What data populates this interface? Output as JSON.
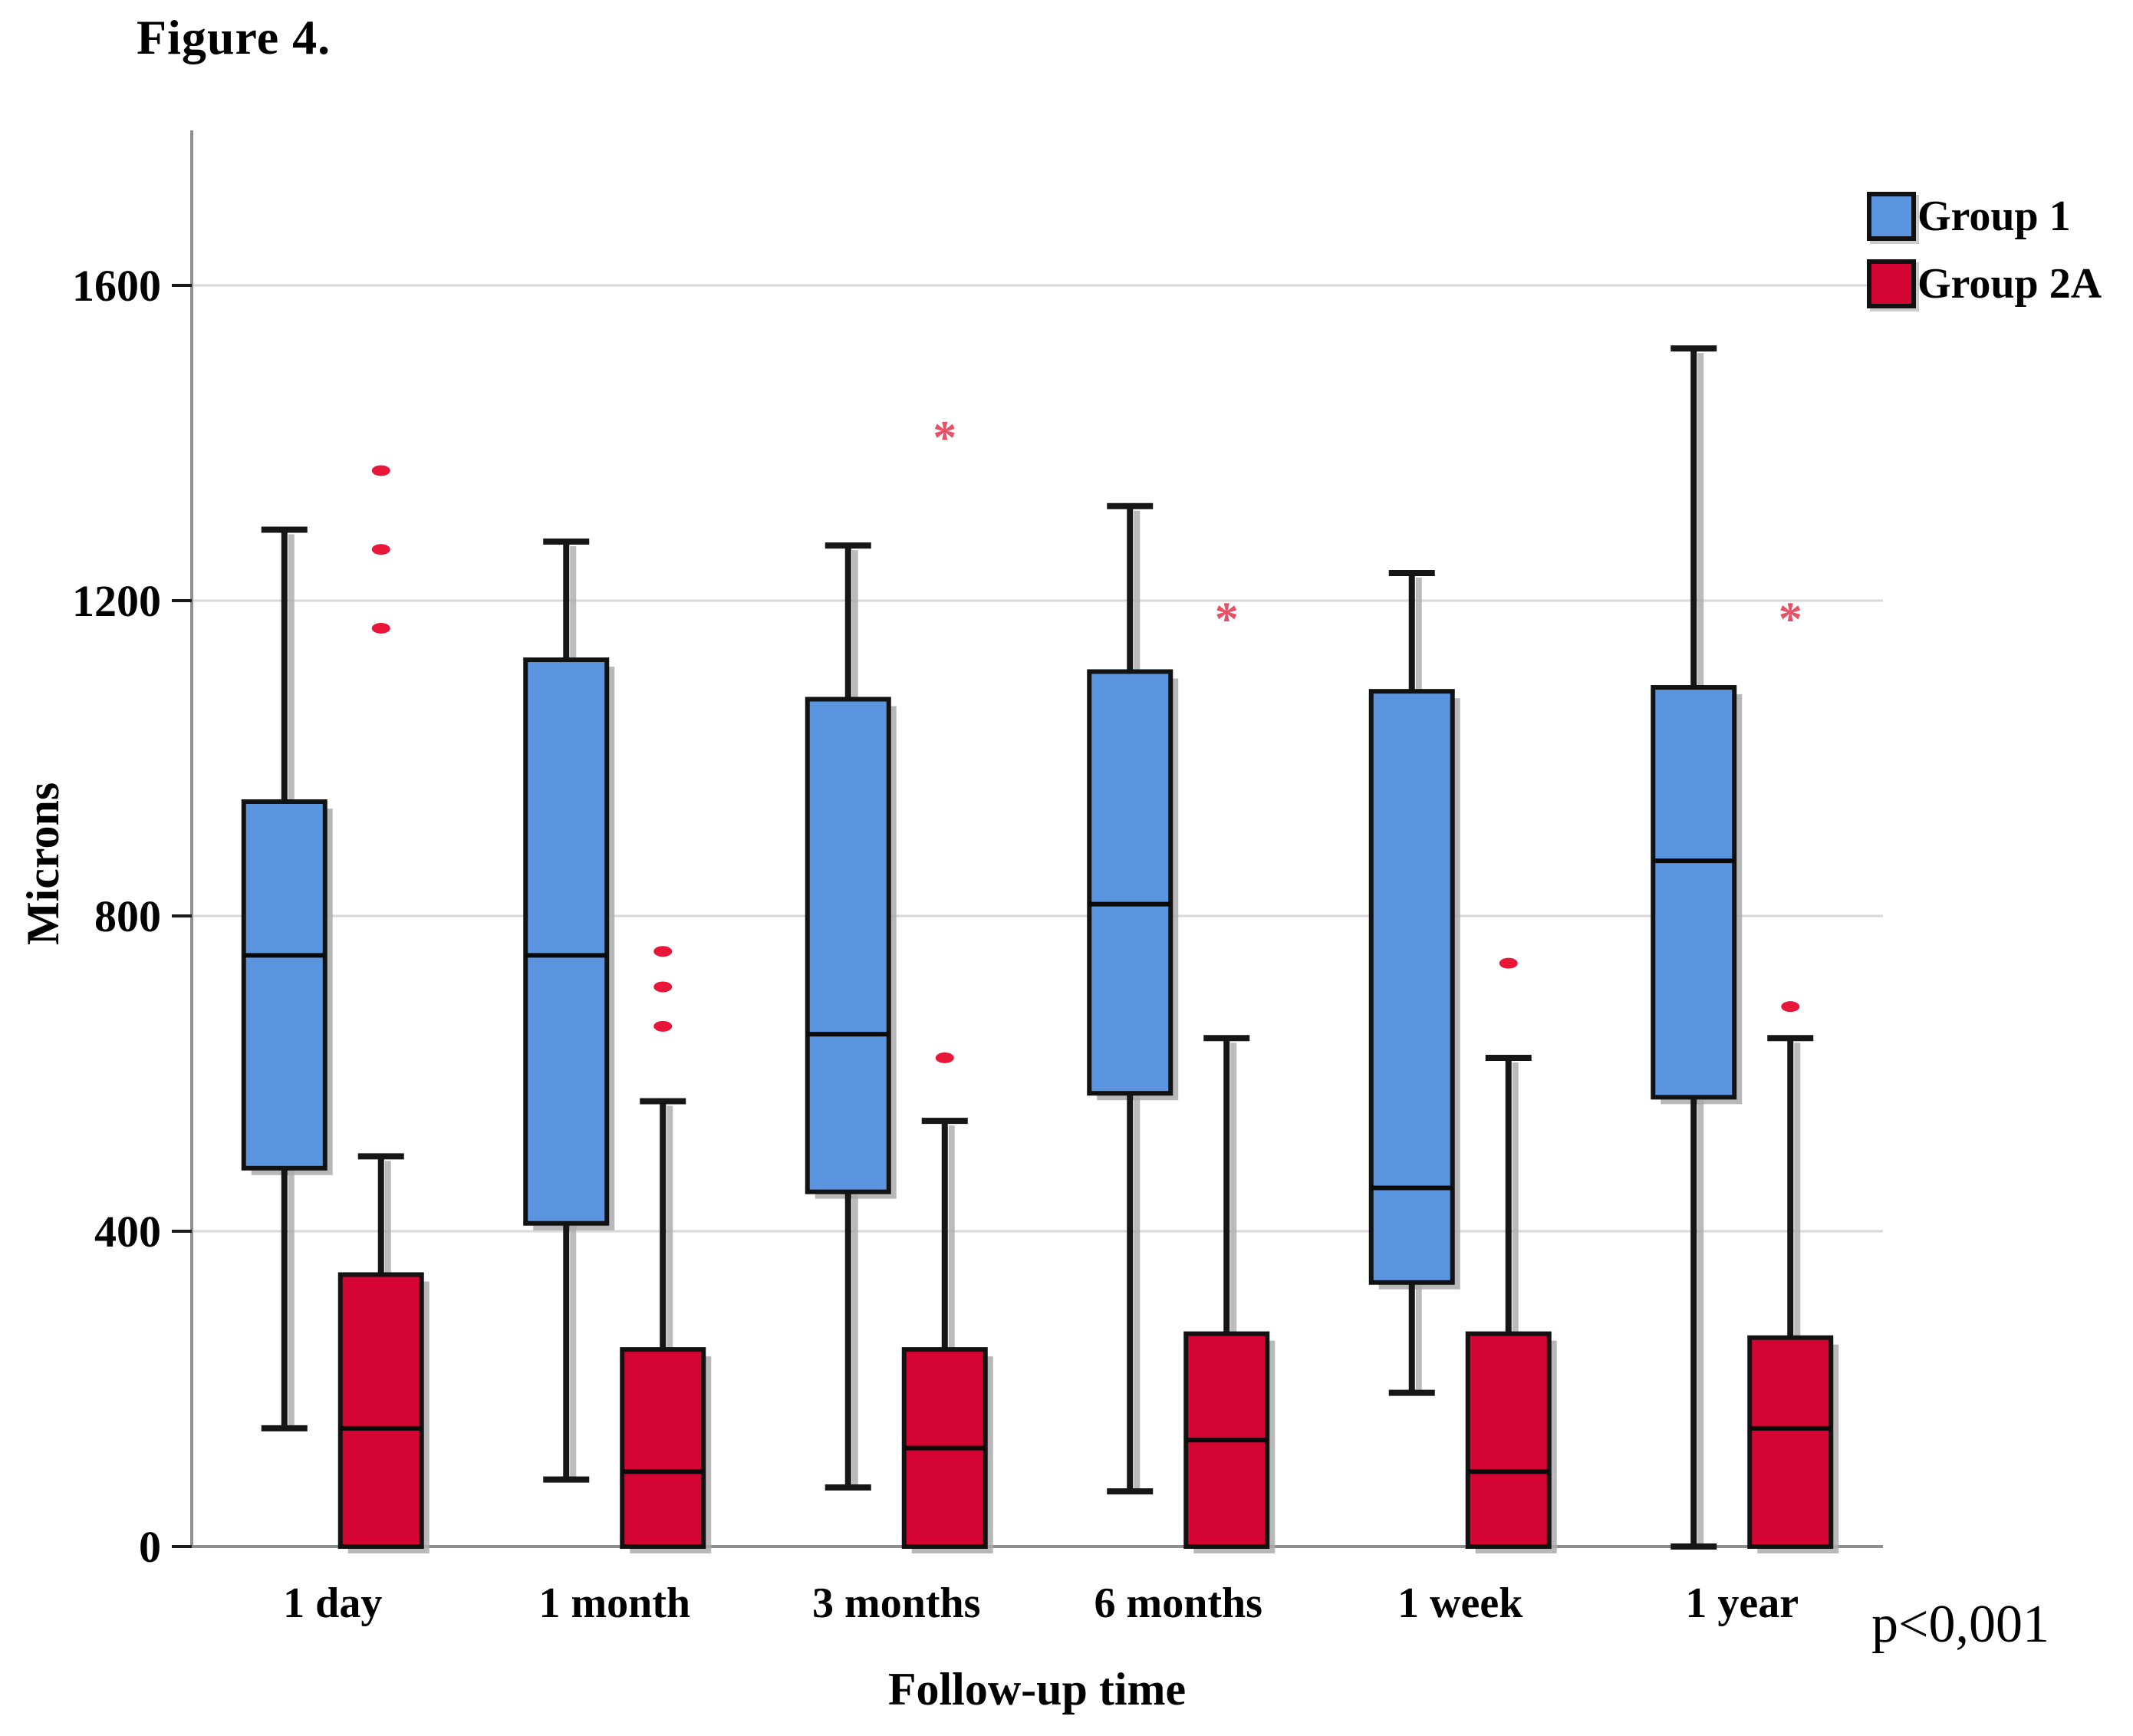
{
  "figure": {
    "title": "Figure 4."
  },
  "axes": {
    "x_label": "Follow-up time",
    "y_label": "Microns"
  },
  "annotation": {
    "p_value": "p<0,001"
  },
  "legend": {
    "position": "top-right",
    "items": [
      {
        "label": "Group 1",
        "color": "#5B94DF"
      },
      {
        "label": "Group 2A",
        "color": "#D40433"
      }
    ]
  },
  "colors": {
    "group1_fill": "#5B94DF",
    "group2a_fill": "#D40433",
    "outlier_dot": "#E8173A",
    "outlier_star": "#E85065",
    "box_border": "#121212",
    "median_line": "#0a0a0a",
    "whisker": "#161616",
    "grid": "#D9D9D9",
    "axis": "#8F8F8F",
    "tick": "#1a1a1a",
    "shadow": "#ABABAB",
    "text": "#000000",
    "background": "#FFFFFF"
  },
  "chart_data": {
    "type": "boxplot",
    "title": "Figure 4.",
    "xlabel": "Follow-up time",
    "ylabel": "Microns",
    "units": "microns",
    "categories": [
      "1 day",
      "1 month",
      "3 months",
      "6 months",
      "1 week",
      "1 year"
    ],
    "yticks": [
      0,
      400,
      800,
      1200,
      1600
    ],
    "ylim": [
      0,
      1790
    ],
    "grid": true,
    "legend_position": "top-right",
    "note": "p<0,001",
    "series": [
      {
        "name": "Group 1",
        "color": "#5B94DF",
        "boxes": [
          {
            "category": "1 day",
            "whislo": 150,
            "q1": 480,
            "median": 750,
            "q3": 945,
            "whishi": 1290,
            "outliers": [],
            "extremes": []
          },
          {
            "category": "1 month",
            "whislo": 85,
            "q1": 410,
            "median": 750,
            "q3": 1125,
            "whishi": 1275,
            "outliers": [],
            "extremes": []
          },
          {
            "category": "3 months",
            "whislo": 75,
            "q1": 450,
            "median": 650,
            "q3": 1075,
            "whishi": 1270,
            "outliers": [],
            "extremes": []
          },
          {
            "category": "6 months",
            "whislo": 70,
            "q1": 575,
            "median": 815,
            "q3": 1110,
            "whishi": 1320,
            "outliers": [],
            "extremes": []
          },
          {
            "category": "1 week",
            "whislo": 195,
            "q1": 335,
            "median": 455,
            "q3": 1085,
            "whishi": 1235,
            "outliers": [],
            "extremes": []
          },
          {
            "category": "1 year",
            "whislo": 0,
            "q1": 570,
            "median": 870,
            "q3": 1090,
            "whishi": 1520,
            "outliers": [],
            "extremes": []
          }
        ]
      },
      {
        "name": "Group 2A",
        "color": "#D40433",
        "boxes": [
          {
            "category": "1 day",
            "whislo": null,
            "q1": 0,
            "median": 150,
            "q3": 345,
            "whishi": 495,
            "outliers": [
              1165,
              1265,
              1365
            ],
            "extremes": []
          },
          {
            "category": "1 month",
            "whislo": null,
            "q1": 0,
            "median": 95,
            "q3": 250,
            "whishi": 565,
            "outliers": [
              660,
              710,
              755
            ],
            "extremes": []
          },
          {
            "category": "3 months",
            "whislo": null,
            "q1": 0,
            "median": 125,
            "q3": 250,
            "whishi": 540,
            "outliers": [
              620
            ],
            "extremes": [
              1420
            ]
          },
          {
            "category": "6 months",
            "whislo": null,
            "q1": 0,
            "median": 135,
            "q3": 270,
            "whishi": 645,
            "outliers": [],
            "extremes": [
              1190
            ]
          },
          {
            "category": "1 week",
            "whislo": null,
            "q1": 0,
            "median": 95,
            "q3": 270,
            "whishi": 620,
            "outliers": [
              740
            ],
            "extremes": []
          },
          {
            "category": "1 year",
            "whislo": null,
            "q1": 0,
            "median": 150,
            "q3": 265,
            "whishi": 645,
            "outliers": [
              685
            ],
            "extremes": [
              1190
            ]
          }
        ]
      }
    ]
  }
}
